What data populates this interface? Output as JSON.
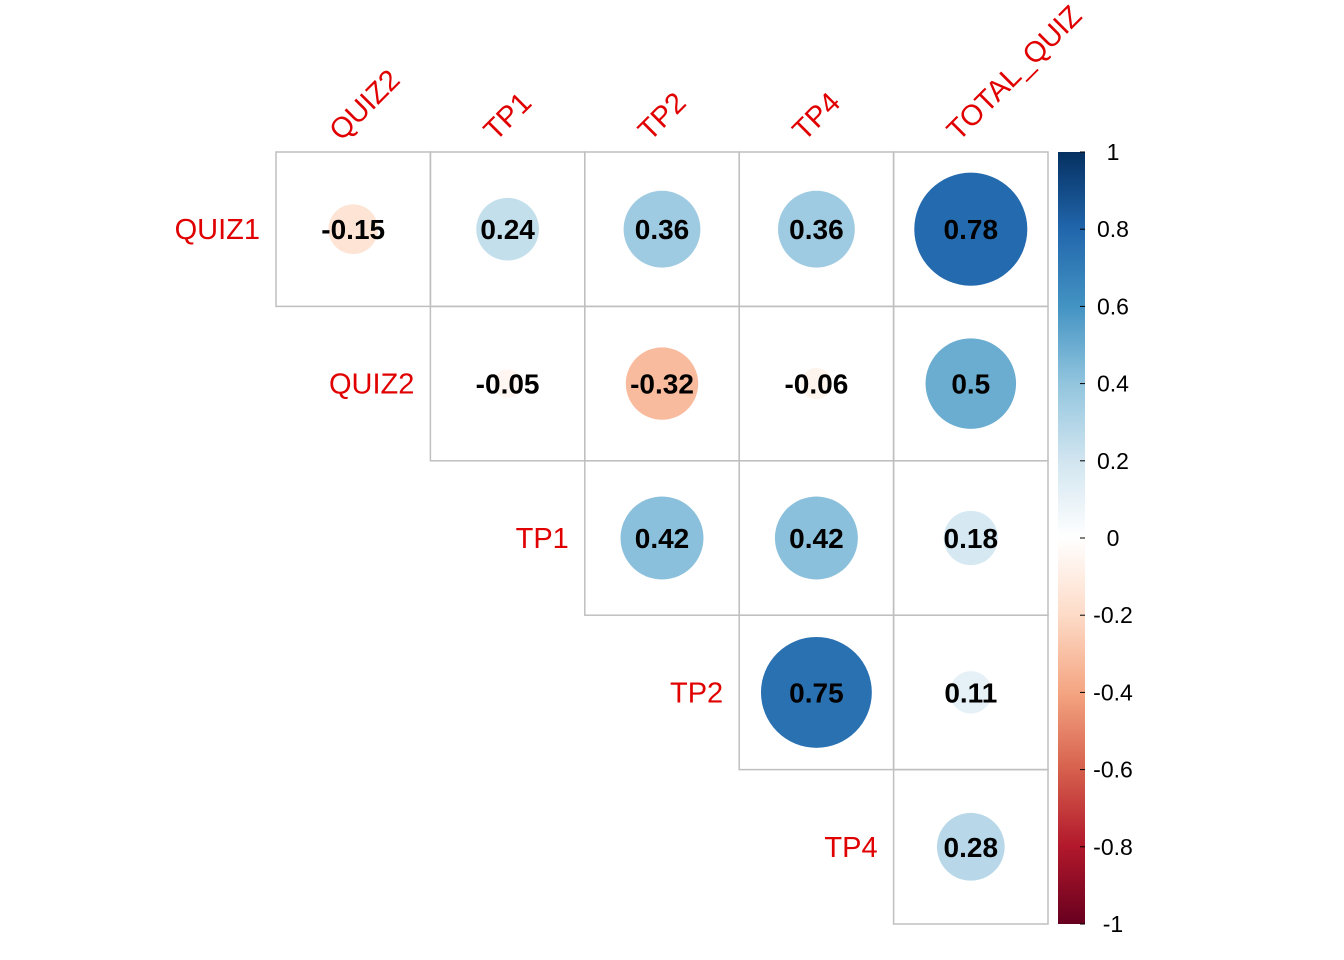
{
  "chart_data": {
    "type": "heatmap",
    "style": "upper-triangle circle correlation plot",
    "row_labels": [
      "QUIZ1",
      "QUIZ2",
      "TP1",
      "TP2",
      "TP4"
    ],
    "column_labels": [
      "QUIZ2",
      "TP1",
      "TP2",
      "TP4",
      "TOTAL_QUIZ"
    ],
    "column_label_visible": [
      "QUIZ2",
      "TP1",
      "TP2",
      "TP4",
      "TOTAL_QUIZ"
    ],
    "values": [
      [
        -0.15,
        0.24,
        0.36,
        0.36,
        0.78
      ],
      [
        null,
        -0.05,
        -0.32,
        -0.06,
        0.5
      ],
      [
        null,
        null,
        0.42,
        0.42,
        0.18
      ],
      [
        null,
        null,
        null,
        0.75,
        0.11
      ],
      [
        null,
        null,
        null,
        null,
        0.28
      ]
    ],
    "value_labels": [
      [
        "-0.15",
        "0.24",
        "0.36",
        "0.36",
        "0.78"
      ],
      [
        "",
        "-0.05",
        "-0.32",
        "-0.06",
        "0.5"
      ],
      [
        "",
        "",
        "0.42",
        "0.42",
        "0.18"
      ],
      [
        "",
        "",
        "",
        "0.75",
        "0.11"
      ],
      [
        "",
        "",
        "",
        "",
        "0.28"
      ]
    ],
    "colorbar": {
      "range": [
        -1,
        1
      ],
      "ticks": [
        "1",
        "0.8",
        "0.6",
        "0.4",
        "0.2",
        "0",
        "-0.2",
        "-0.4",
        "-0.6",
        "-0.8",
        "-1"
      ],
      "tick_values": [
        1,
        0.8,
        0.6,
        0.4,
        0.2,
        0,
        -0.2,
        -0.4,
        -0.6,
        -0.8,
        -1
      ],
      "placement": "right"
    },
    "colors": {
      "label_color": "#e00000",
      "grid_color": "#bfbfbf",
      "palette": [
        "#67001f",
        "#b2182b",
        "#d6604d",
        "#f4a582",
        "#fddbc7",
        "#ffffff",
        "#d1e5f0",
        "#92c5de",
        "#4393c3",
        "#2166ac",
        "#053061"
      ]
    }
  }
}
